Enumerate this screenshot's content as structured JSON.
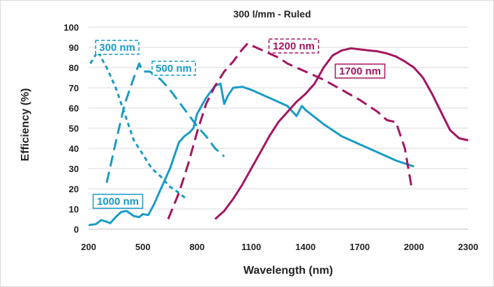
{
  "chart_data": {
    "type": "line",
    "title": "300 l/mm - Ruled",
    "xlabel": "Wavelength (nm)",
    "ylabel": "Efficiency (%)",
    "xlim": [
      200,
      2300
    ],
    "ylim": [
      0,
      100
    ],
    "xticks": [
      200,
      500,
      800,
      1100,
      1400,
      1700,
      2000,
      2300
    ],
    "yticks": [
      0,
      10,
      20,
      30,
      40,
      50,
      60,
      70,
      80,
      90,
      100
    ],
    "grid": "horizontal",
    "legend": "none",
    "colors": {
      "teal": "#199bc4",
      "magenta": "#a3155f",
      "grid": "#d9d9d9"
    },
    "series": [
      {
        "name": "300 nm",
        "color": "#199bc4",
        "style": "short-dash",
        "x": [
          210,
          250,
          300,
          350,
          400,
          450,
          500,
          550,
          600,
          650,
          700,
          740
        ],
        "y": [
          82,
          88,
          80,
          70,
          57,
          44,
          37,
          30,
          26,
          21,
          18,
          15
        ]
      },
      {
        "name": "500 nm",
        "color": "#199bc4",
        "style": "long-dash",
        "x": [
          300,
          350,
          400,
          450,
          480,
          500,
          540,
          600,
          650,
          700,
          750,
          800,
          850,
          900,
          950
        ],
        "y": [
          23,
          43,
          62,
          75,
          82,
          78,
          78,
          74,
          69,
          63,
          57,
          51,
          46,
          40,
          36
        ]
      },
      {
        "name": "1000 nm",
        "color": "#199bc4",
        "style": "solid",
        "x": [
          200,
          240,
          270,
          290,
          320,
          350,
          380,
          410,
          450,
          480,
          500,
          530,
          560,
          600,
          650,
          700,
          730,
          760,
          780,
          800,
          850,
          900,
          930,
          950,
          970,
          1000,
          1050,
          1100,
          1200,
          1300,
          1350,
          1380,
          1400,
          1500,
          1600,
          1700,
          1800,
          1900,
          2000
        ],
        "y": [
          2,
          2.5,
          4.5,
          4,
          3,
          6,
          8.5,
          9,
          6.5,
          6,
          7.5,
          7,
          12,
          20,
          30,
          43,
          46,
          48,
          50,
          57,
          65,
          71,
          72,
          62,
          66,
          70,
          70.5,
          69,
          65,
          61,
          56,
          61,
          59,
          52,
          46,
          42,
          38,
          34,
          31
        ]
      },
      {
        "name": "1200 nm",
        "color": "#a3155f",
        "style": "long-dash",
        "x": [
          640,
          700,
          750,
          800,
          850,
          900,
          950,
          1000,
          1050,
          1080,
          1100,
          1150,
          1200,
          1250,
          1300,
          1400,
          1500,
          1600,
          1700,
          1800,
          1850,
          1900,
          1950,
          1990
        ],
        "y": [
          5,
          18,
          32,
          48,
          62,
          71,
          78,
          83,
          89,
          92,
          91,
          89,
          87,
          85,
          82,
          78,
          74,
          69,
          64,
          58,
          54,
          53,
          40,
          19
        ]
      },
      {
        "name": "1700 nm",
        "color": "#a3155f",
        "style": "solid",
        "x": [
          900,
          950,
          1000,
          1050,
          1100,
          1150,
          1200,
          1250,
          1300,
          1350,
          1400,
          1450,
          1500,
          1550,
          1600,
          1650,
          1700,
          1750,
          1800,
          1850,
          1900,
          1950,
          2000,
          2050,
          2100,
          2150,
          2200,
          2250,
          2300
        ],
        "y": [
          5,
          9,
          15,
          22,
          30,
          38,
          46,
          53,
          58,
          63,
          67,
          72,
          80,
          86,
          88.5,
          89.5,
          89,
          88.5,
          88,
          87,
          85.5,
          83,
          80,
          75,
          67,
          58,
          49,
          45,
          44
        ]
      }
    ]
  }
}
